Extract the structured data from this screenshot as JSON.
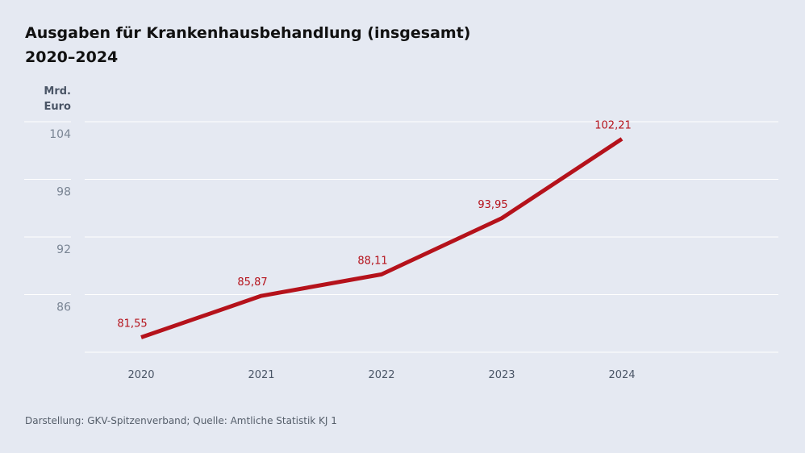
{
  "title_line1": "Ausgaben für Krankenhausbehandlung (insgesamt)",
  "title_line2": "2020–2024",
  "source": "Darstellung: GKV-Spitzenverband; Quelle: Amtliche Statistik KJ 1",
  "colors": {
    "line": "#b5121b",
    "label": "#b5121b",
    "grid": "#ffffff",
    "background": "#e5e9f2"
  },
  "chart_data": {
    "type": "line",
    "title": "Ausgaben für Krankenhausbehandlung (insgesamt) 2020–2024",
    "ylabel": "Mrd. Euro",
    "ylabel_lines": [
      "Mrd.",
      "Euro"
    ],
    "xlabel": "",
    "categories": [
      "2020",
      "2021",
      "2022",
      "2023",
      "2024"
    ],
    "values": [
      81.55,
      85.87,
      88.11,
      93.95,
      102.21
    ],
    "data_labels": [
      "81,55",
      "85,87",
      "88,11",
      "93,95",
      "102,21"
    ],
    "yticks": [
      86,
      92,
      98,
      104
    ],
    "ylim": [
      80,
      104
    ],
    "grid": true,
    "legend": "none"
  }
}
